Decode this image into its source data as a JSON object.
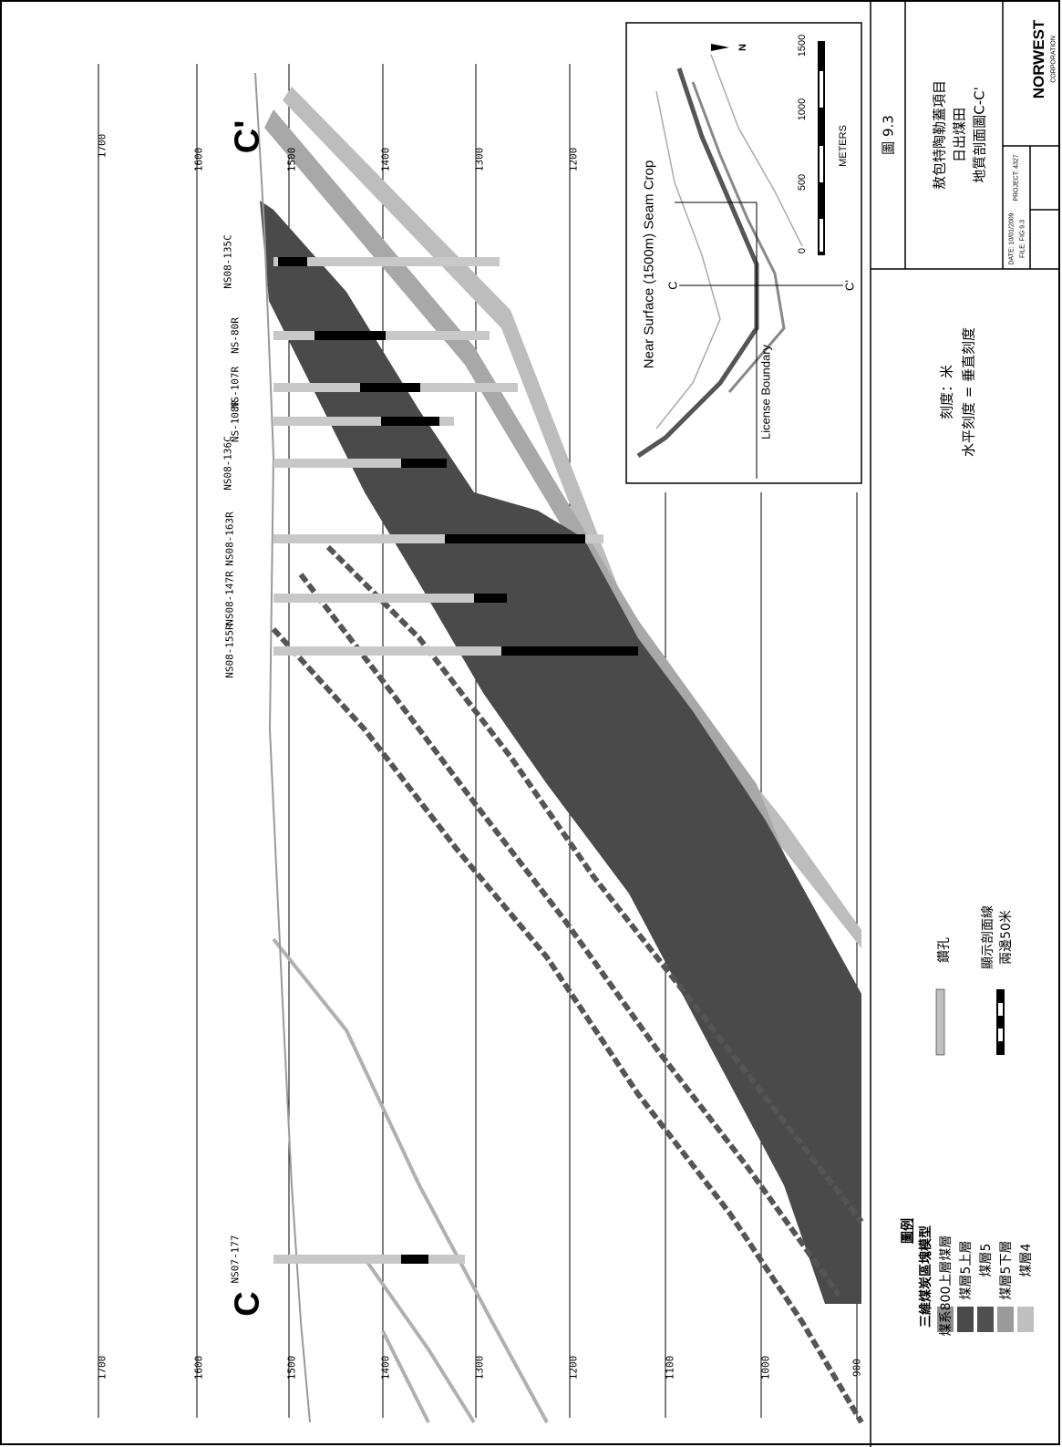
{
  "section_labels": {
    "left": "C",
    "right": "C'"
  },
  "elevations": [
    "1700",
    "1600",
    "1500",
    "1400",
    "1300",
    "1200",
    "1100",
    "1000",
    "900"
  ],
  "drillholes": [
    {
      "id": "NS07-177"
    },
    {
      "id": "NS08-155R"
    },
    {
      "id": "NS08-147R"
    },
    {
      "id": "NS08-163R"
    },
    {
      "id": "NS08-136C"
    },
    {
      "id": "NS-108R"
    },
    {
      "id": "NS-107R"
    },
    {
      "id": "NS-80R"
    },
    {
      "id": "NS08-135C"
    }
  ],
  "inset": {
    "title": "Near Surface (1500m) Seam Crop",
    "boundary": "License Boundary",
    "scale_ticks": [
      "0",
      "500",
      "1000",
      "1500"
    ],
    "scale_unit": "METERS",
    "c_left": "C",
    "c_right": "C'",
    "north": "N"
  },
  "title_block": {
    "figure": "圖 9.3",
    "line1": "敖包特陶勒蓋項目",
    "line2": "日出煤田",
    "line3": "地質剖面圖C-C'",
    "scale1": "刻度：米",
    "scale2": "水平刻度 = 垂直刻度",
    "logo_text": "NORWEST",
    "logo_sub": "CORPORATION",
    "date_label": "DATE: 10/01/2009",
    "file_label": "FILE: FIG 9.3",
    "project_label": "PROJECT: 4327"
  },
  "legend": {
    "title": "圖例",
    "subtitle": "三維煤炭區塊模型",
    "items": [
      {
        "label": "煤系800上層煤層",
        "color": "#8f8f8f"
      },
      {
        "label": "煤層5上層",
        "color": "#4a4a4a"
      },
      {
        "label": "煤層5",
        "color": "#505050"
      },
      {
        "label": "煤層5下層",
        "color": "#9a9a9a"
      },
      {
        "label": "煤層4",
        "color": "#c0c0c0"
      }
    ],
    "drill_label": "鑽孔",
    "proj_label1": "顯示剖面線",
    "proj_label2": "兩邊50米"
  }
}
